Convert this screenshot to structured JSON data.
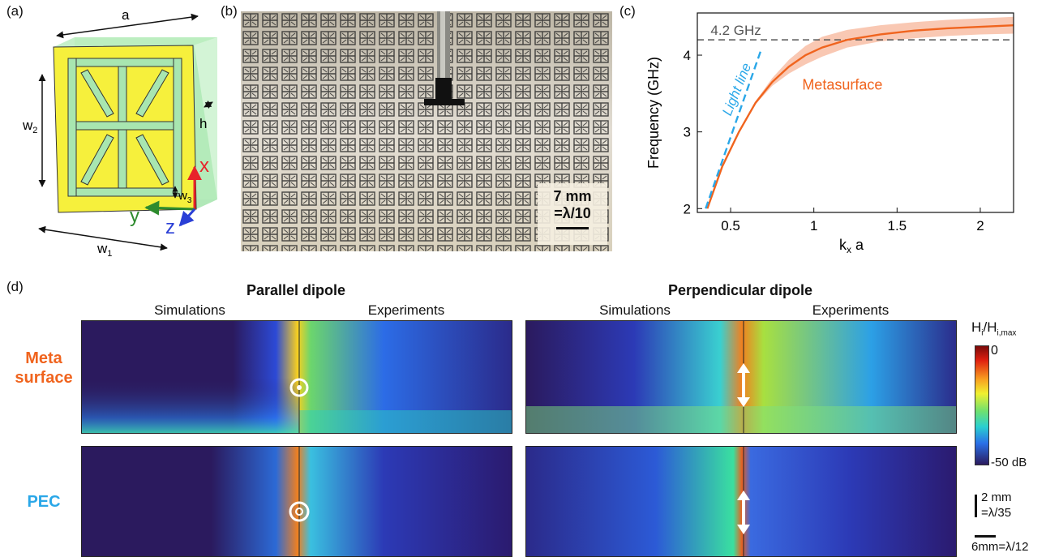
{
  "panels": {
    "a": "(a)",
    "b": "(b)",
    "c": "(c)",
    "d": "(d)"
  },
  "unit_cell": {
    "a_label": "a",
    "w1_label": "w",
    "w1_sub": "1",
    "w2_label": "w",
    "w2_sub": "2",
    "w3_label": "w",
    "w3_sub": "3",
    "h_label": "h",
    "axis_x": "x",
    "axis_y": "y",
    "axis_z": "z",
    "colors": {
      "metal": "#f6f03c",
      "substrate": "#a8e6b0",
      "x": "#e8232a",
      "y": "#2e8b2e",
      "z": "#2a3fd6"
    }
  },
  "photo": {
    "scale_value": "7 mm",
    "scale_ratio": "=λ/10"
  },
  "chart_data": {
    "type": "line",
    "xlabel": "k",
    "xlabel_sub": "x",
    "xlabel_suffix": " a",
    "ylabel": "Frequency (GHz)",
    "xlim": [
      0.3,
      2.2
    ],
    "ylim": [
      1.95,
      4.55
    ],
    "xticks": [
      0.5,
      1,
      1.5,
      2
    ],
    "xtick_labels": [
      "0.5",
      "1",
      "1.5",
      "2"
    ],
    "yticks": [
      2,
      3,
      4
    ],
    "ytick_labels": [
      "2",
      "3",
      "4"
    ],
    "hline": {
      "y": 4.2,
      "label": "4.2 GHz"
    },
    "series": [
      {
        "name": "Metasurface",
        "color": "#f0641e",
        "x": [
          0.36,
          0.45,
          0.55,
          0.65,
          0.75,
          0.85,
          0.95,
          1.05,
          1.2,
          1.4,
          1.6,
          1.8,
          2.0,
          2.2
        ],
        "y": [
          2.0,
          2.55,
          3.0,
          3.38,
          3.65,
          3.85,
          4.0,
          4.1,
          4.2,
          4.27,
          4.32,
          4.35,
          4.37,
          4.39
        ],
        "band_lo": [
          2.0,
          2.55,
          3.0,
          3.36,
          3.6,
          3.76,
          3.88,
          3.98,
          4.1,
          4.18,
          4.22,
          4.25,
          4.27,
          4.28
        ],
        "band_hi": [
          2.0,
          2.55,
          3.0,
          3.4,
          3.7,
          3.94,
          4.12,
          4.24,
          4.33,
          4.39,
          4.43,
          4.46,
          4.48,
          4.5
        ]
      },
      {
        "name": "Light line",
        "color": "#2aa7e8",
        "dashed": true,
        "x": [
          0.35,
          0.68
        ],
        "y": [
          2.0,
          4.05
        ]
      }
    ]
  },
  "field_maps": {
    "group_left": "Parallel dipole",
    "group_right": "Perpendicular dipole",
    "sim_label": "Simulations",
    "exp_label": "Experiments",
    "row_meta_line1": "Meta",
    "row_meta_line2": "surface",
    "row_pec": "PEC",
    "row_meta_color": "#f0641e",
    "row_pec_color": "#2aa7e8"
  },
  "colorbar": {
    "title_main": "H",
    "title_sub": "i",
    "title_mid": "/H",
    "title_sub2": "i,max",
    "top_label": "0",
    "bottom_label": "-50 dB",
    "scale_v_value": "2 mm",
    "scale_v_ratio": "=λ/35",
    "scale_h": "6mm=λ/12"
  }
}
